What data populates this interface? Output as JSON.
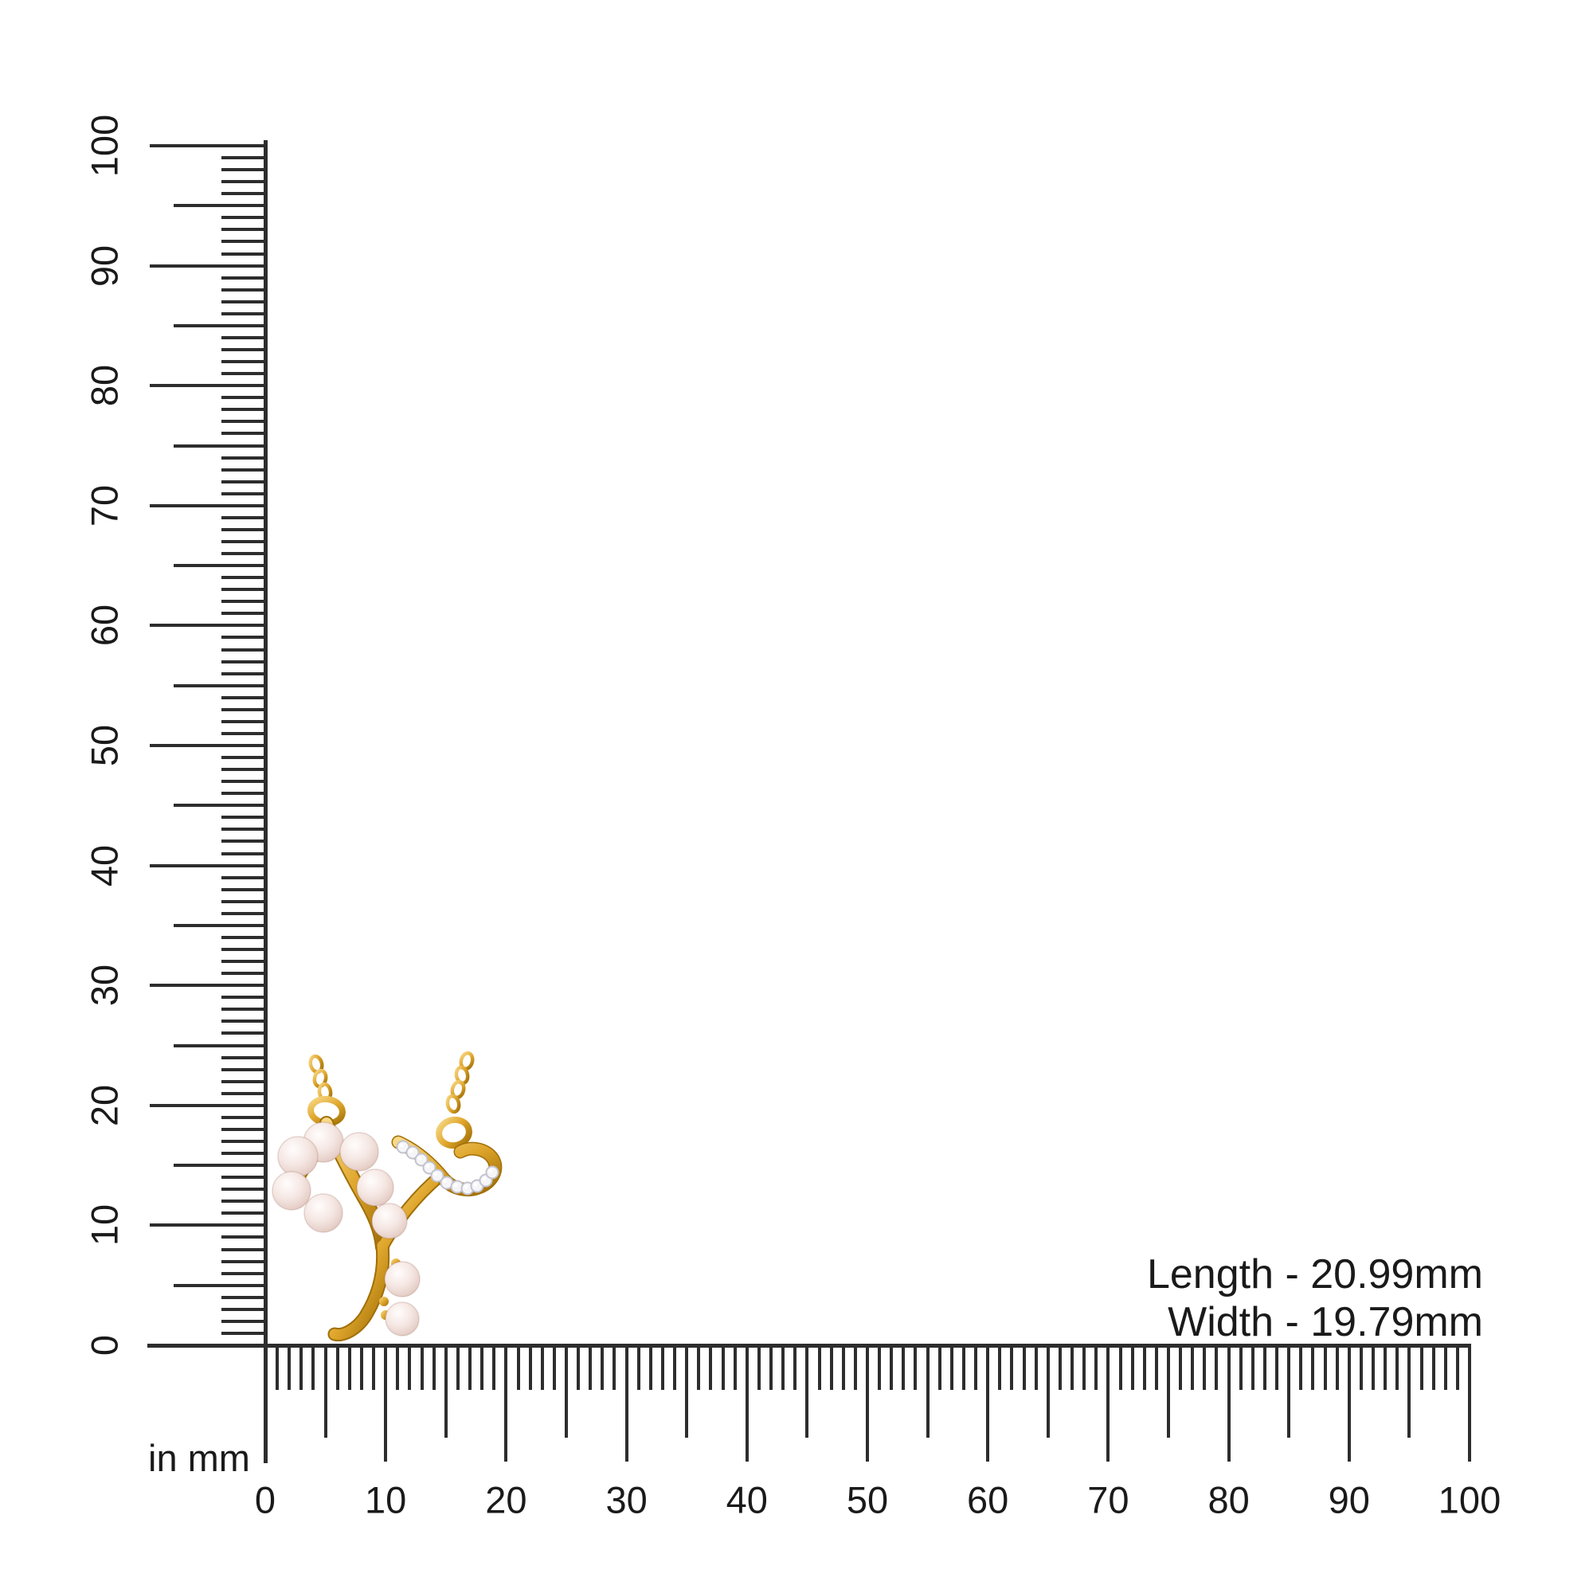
{
  "annotations": {
    "length": "Length - 20.99mm",
    "width": "Width - 19.79mm"
  },
  "unit_label": "in mm",
  "rulers": {
    "vertical": {
      "min": 0,
      "max": 100,
      "minor_step": 1,
      "medium_step": 5,
      "major_step": 10,
      "labels": [
        "0",
        "10",
        "20",
        "30",
        "40",
        "50",
        "60",
        "70",
        "80",
        "90",
        "100"
      ]
    },
    "horizontal": {
      "min": 0,
      "max": 100,
      "minor_step": 1,
      "medium_step": 5,
      "major_step": 10,
      "labels": [
        "0",
        "10",
        "20",
        "30",
        "40",
        "50",
        "60",
        "70",
        "80",
        "90",
        "100"
      ]
    }
  },
  "colors": {
    "background": "#ffffff",
    "ink": "#1a1a1a",
    "ruler-line": "#2d2d2d",
    "gold": "#dfa62c",
    "gold-dark": "#a06e06",
    "gold-light": "#f7d987",
    "pearl-light": "#fffdfc",
    "pearl": "#f5e7e3",
    "pearl-shadow": "#d9bcb1",
    "stone": "#f6f6f9",
    "stone-edge": "#c3c3cf"
  }
}
